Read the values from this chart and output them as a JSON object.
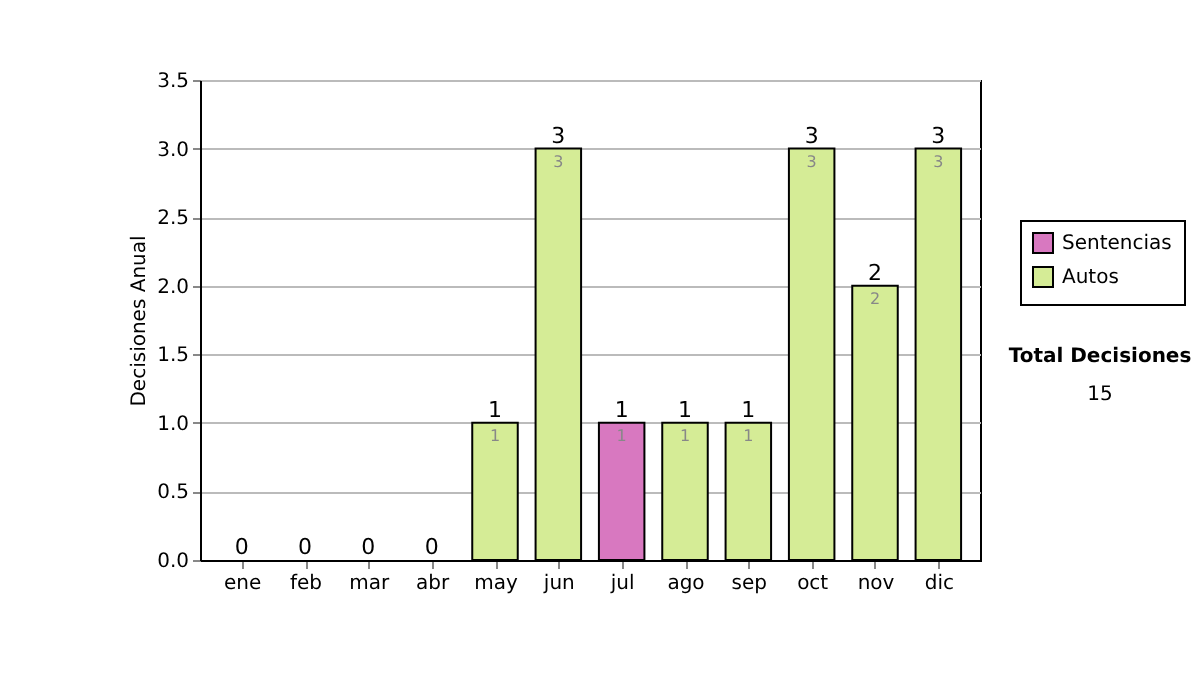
{
  "chart_data": {
    "type": "bar",
    "stacked": true,
    "ylabel": "Decisiones Anual",
    "categories": [
      "ene",
      "feb",
      "mar",
      "abr",
      "may",
      "jun",
      "jul",
      "ago",
      "sep",
      "oct",
      "nov",
      "dic"
    ],
    "series": [
      {
        "name": "Sentencias",
        "color": "#d878c0",
        "values": [
          0,
          0,
          0,
          0,
          0,
          0,
          1,
          0,
          0,
          0,
          0,
          0
        ],
        "value_labels": [
          null,
          null,
          null,
          null,
          null,
          null,
          "1",
          null,
          null,
          null,
          null,
          null
        ]
      },
      {
        "name": "Autos",
        "color": "#d5ec96",
        "values": [
          0,
          0,
          0,
          0,
          1,
          3,
          0,
          1,
          1,
          3,
          2,
          3
        ],
        "value_labels": [
          null,
          null,
          null,
          null,
          "1",
          "3",
          null,
          "1",
          "1",
          "3",
          "2",
          "3"
        ]
      }
    ],
    "totals": [
      "0",
      "0",
      "0",
      "0",
      "1",
      "3",
      "1",
      "1",
      "1",
      "3",
      "2",
      "3"
    ],
    "ylim": [
      0,
      3.5
    ],
    "yticks": [
      {
        "value": 0,
        "label": "0.0"
      },
      {
        "value": 0.5,
        "label": "0.5"
      },
      {
        "value": 1,
        "label": "1.0"
      },
      {
        "value": 1.5,
        "label": "1.5"
      },
      {
        "value": 2,
        "label": "2.0"
      },
      {
        "value": 2.5,
        "label": "2.5"
      },
      {
        "value": 3,
        "label": "3.0"
      },
      {
        "value": 3.5,
        "label": "3.5"
      }
    ],
    "grid": "y",
    "legend": "top right",
    "annotations": [
      "Total Decisiones",
      "15"
    ]
  }
}
